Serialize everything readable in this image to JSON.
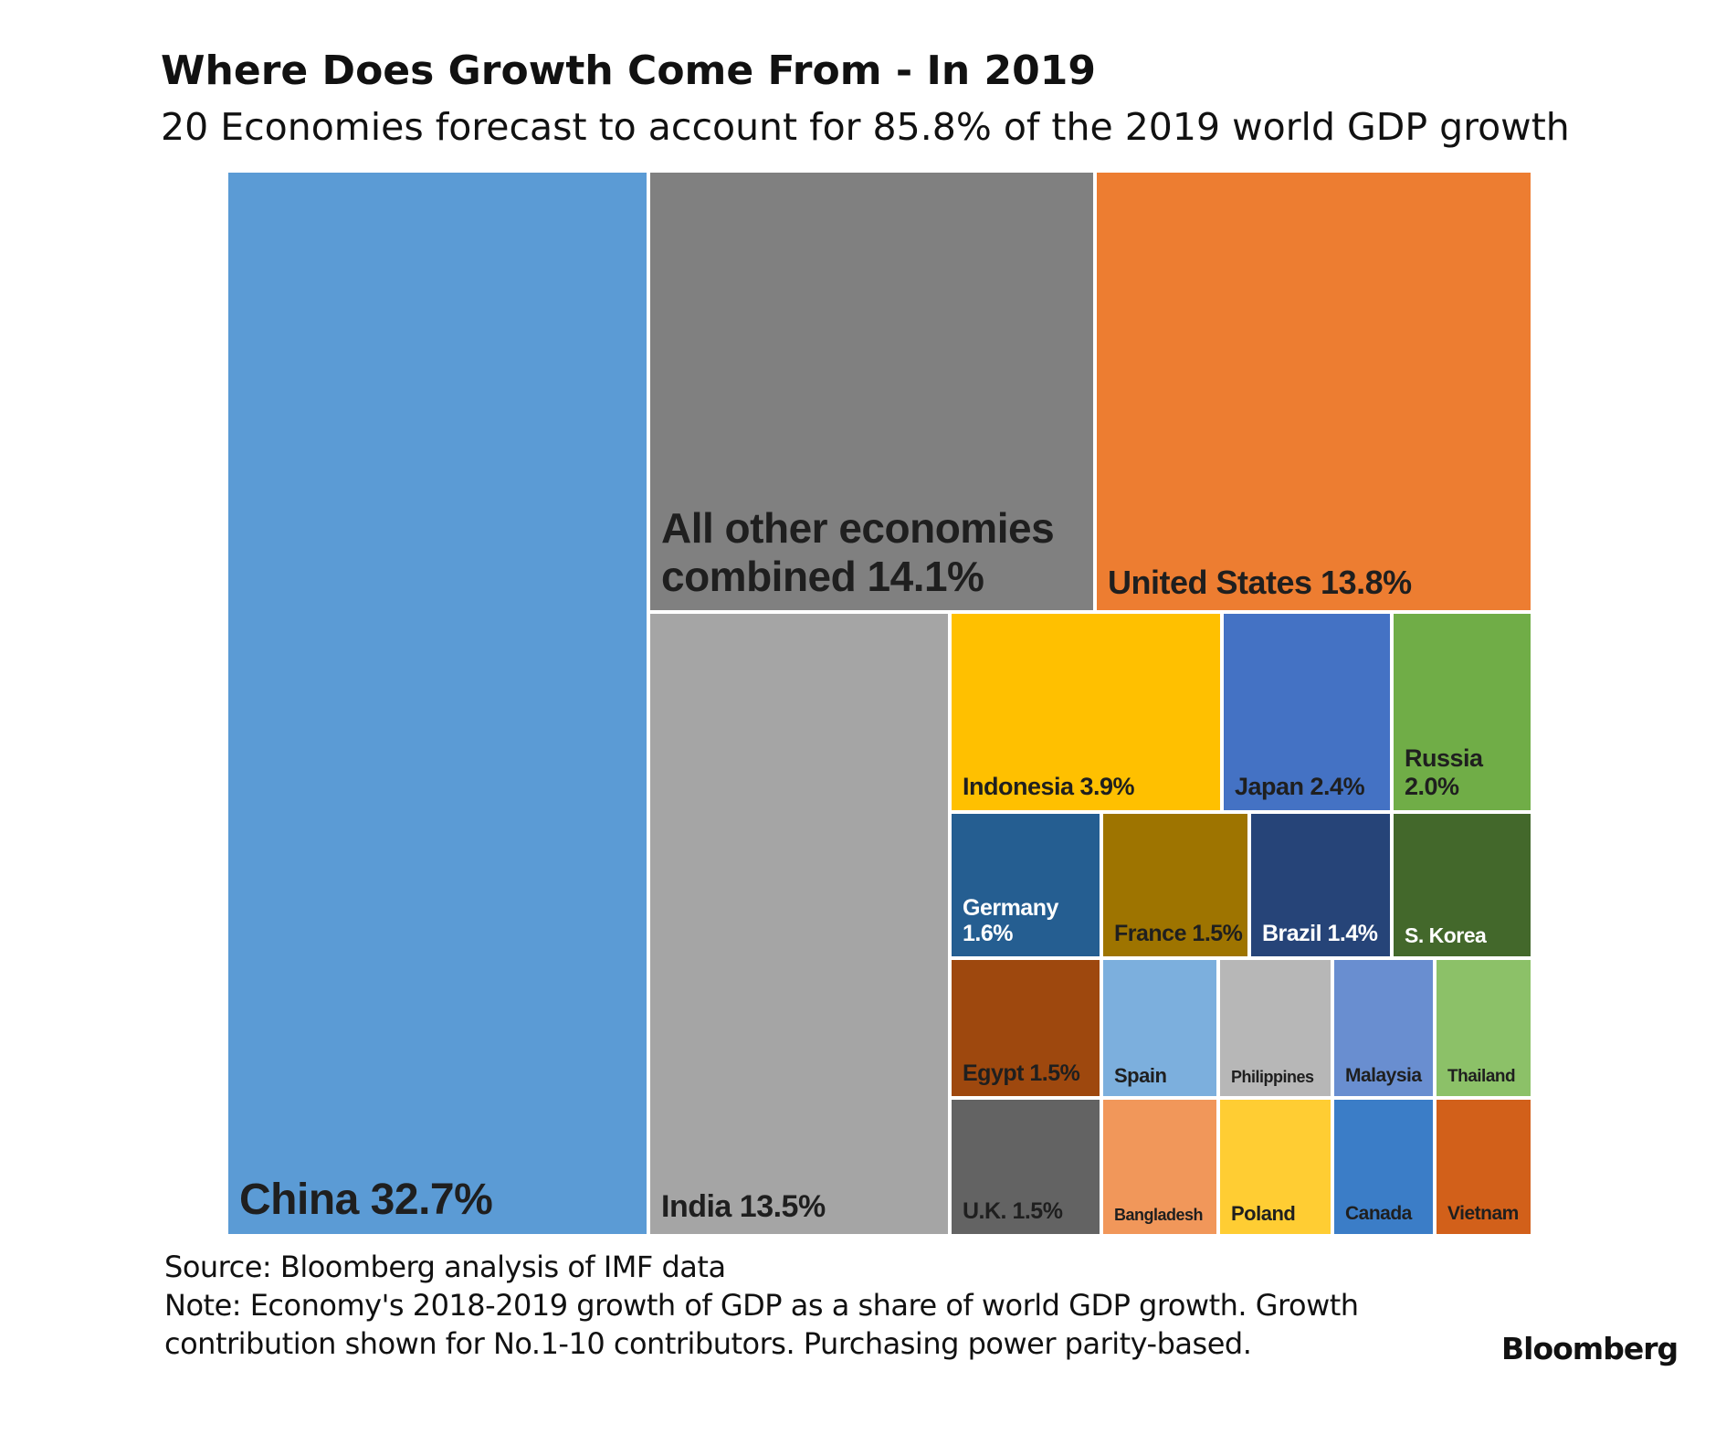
{
  "header": {
    "title": "Where Does Growth Come From - In 2019",
    "subtitle": "20 Economies forecast to account for 85.8% of the 2019 world GDP growth"
  },
  "chart_data": {
    "type": "treemap",
    "items": [
      {
        "name": "China",
        "share": 32.7,
        "label": "China 32.7%",
        "color": "#5b9bd5",
        "text_color": "#1f1f1f"
      },
      {
        "name": "All other economies combined",
        "share": 14.1,
        "label": "All other economies\ncombined 14.1%",
        "color": "#808080",
        "text_color": "#1f1f1f"
      },
      {
        "name": "United States",
        "share": 13.8,
        "label": "United States 13.8%",
        "color": "#ed7d31",
        "text_color": "#1f1f1f"
      },
      {
        "name": "India",
        "share": 13.5,
        "label": "India 13.5%",
        "color": "#a5a5a5",
        "text_color": "#1f1f1f"
      },
      {
        "name": "Indonesia",
        "share": 3.9,
        "label": "Indonesia 3.9%",
        "color": "#ffc000",
        "text_color": "#1f1f1f"
      },
      {
        "name": "Japan",
        "share": 2.4,
        "label": "Japan 2.4%",
        "color": "#4472c4",
        "text_color": "#1f1f1f"
      },
      {
        "name": "Russia",
        "share": 2.0,
        "label": "Russia\n2.0%",
        "color": "#70ad47",
        "text_color": "#1f1f1f"
      },
      {
        "name": "Germany",
        "share": 1.6,
        "label": "Germany\n1.6%",
        "color": "#255e91",
        "text_color": "#ffffff"
      },
      {
        "name": "France",
        "share": 1.5,
        "label": "France 1.5%",
        "color": "#9e7400",
        "text_color": "#1f1f1f"
      },
      {
        "name": "Brazil",
        "share": 1.4,
        "label": "Brazil 1.4%",
        "color": "#264478",
        "text_color": "#ffffff"
      },
      {
        "name": "S. Korea",
        "share": null,
        "label": "S. Korea",
        "color": "#43682b",
        "text_color": "#ffffff"
      },
      {
        "name": "Egypt",
        "share": 1.5,
        "label": "Egypt 1.5%",
        "color": "#9e480e",
        "text_color": "#1f1f1f"
      },
      {
        "name": "Spain",
        "share": null,
        "label": "Spain",
        "color": "#7cafdd",
        "text_color": "#1f1f1f"
      },
      {
        "name": "Philippines",
        "share": null,
        "label": "Philippines",
        "color": "#b7b7b7",
        "text_color": "#1f1f1f"
      },
      {
        "name": "Malaysia",
        "share": null,
        "label": "Malaysia",
        "color": "#698ed0",
        "text_color": "#1f1f1f"
      },
      {
        "name": "Thailand",
        "share": null,
        "label": "Thailand",
        "color": "#8cc168",
        "text_color": "#1f1f1f"
      },
      {
        "name": "U.K.",
        "share": 1.5,
        "label": "U.K. 1.5%",
        "color": "#636363",
        "text_color": "#1f1f1f"
      },
      {
        "name": "Bangladesh",
        "share": null,
        "label": "Bangladesh",
        "color": "#f1975a",
        "text_color": "#1f1f1f"
      },
      {
        "name": "Poland",
        "share": null,
        "label": "Poland",
        "color": "#ffcd33",
        "text_color": "#1f1f1f"
      },
      {
        "name": "Canada",
        "share": null,
        "label": "Canada",
        "color": "#3b7dc7",
        "text_color": "#1f1f1f"
      },
      {
        "name": "Vietnam",
        "share": null,
        "label": "Vietnam",
        "color": "#d2601a",
        "text_color": "#1f1f1f"
      }
    ]
  },
  "footer": {
    "source": "Source: Bloomberg analysis of IMF data",
    "note_line1": "Note: Economy's 2018-2019 growth of GDP as a share of world GDP growth. Growth",
    "note_line2": "contribution shown for No.1-10 contributors. Purchasing power parity-based.",
    "brand": "Bloomberg"
  }
}
